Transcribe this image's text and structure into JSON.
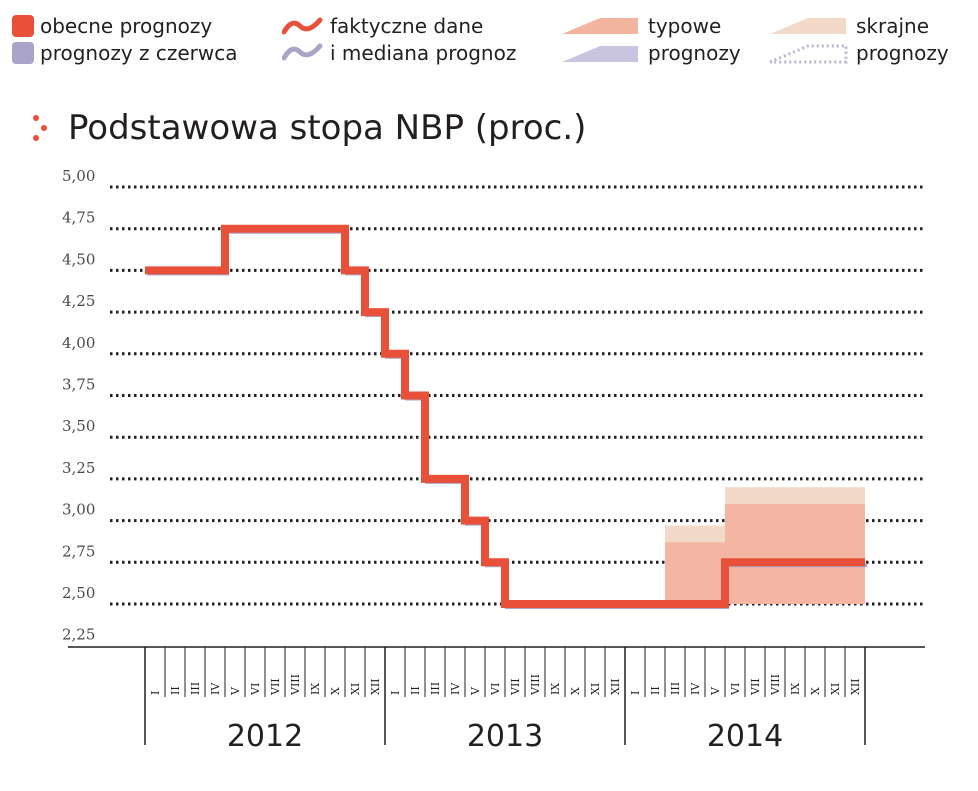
{
  "legend": {
    "obecne": "obecne prognozy",
    "czerwca": "prognozy z czerwca",
    "faktyczne": "faktyczne dane",
    "mediana": "i mediana prognoz",
    "typowe_1": "typowe",
    "typowe_2": "prognozy",
    "skrajne_1": "skrajne",
    "skrajne_2": "prognozy"
  },
  "colors": {
    "actual": "#e8503a",
    "typical": "#f3b4a0",
    "extreme": "#f2d9c8",
    "june": "#a9a4c8",
    "grid": "#231f20"
  },
  "chart_data": {
    "type": "line",
    "title": "Podstawowa stopa NBP (proc.)",
    "y_ticks": [
      "5,00",
      "4,75",
      "4,50",
      "4,25",
      "4,00",
      "3,75",
      "3,50",
      "3,25",
      "3,00",
      "2,75",
      "2,50",
      "2,25"
    ],
    "ylim": [
      2.25,
      5.0
    ],
    "years": [
      "2012",
      "2013",
      "2014"
    ],
    "months": [
      "I",
      "II",
      "III",
      "IV",
      "V",
      "VI",
      "VII",
      "VIII",
      "IX",
      "X",
      "XI",
      "XII"
    ],
    "series": [
      {
        "kind": "actual_and_median",
        "x_months": [
          0,
          4,
          4,
          10,
          10,
          11,
          11,
          12,
          12,
          13,
          13,
          14,
          14,
          16,
          16,
          17,
          17,
          18,
          18,
          24,
          24,
          29,
          29,
          36
        ],
        "y": [
          4.5,
          4.5,
          4.75,
          4.75,
          4.5,
          4.5,
          4.25,
          4.25,
          4.0,
          4.0,
          3.75,
          3.75,
          3.25,
          3.25,
          3.0,
          3.0,
          2.75,
          2.75,
          2.5,
          2.5,
          2.5,
          2.5,
          2.75,
          2.75
        ]
      }
    ],
    "bands": [
      {
        "name": "skrajne",
        "x_months": [
          26,
          29
        ],
        "low": 2.5,
        "high": 2.97
      },
      {
        "name": "skrajne",
        "x_months": [
          29,
          36
        ],
        "low": 2.5,
        "high": 3.2
      },
      {
        "name": "typowe",
        "x_months": [
          26,
          29
        ],
        "low": 2.5,
        "high": 2.87
      },
      {
        "name": "typowe",
        "x_months": [
          29,
          36
        ],
        "low": 2.5,
        "high": 3.1
      }
    ]
  }
}
